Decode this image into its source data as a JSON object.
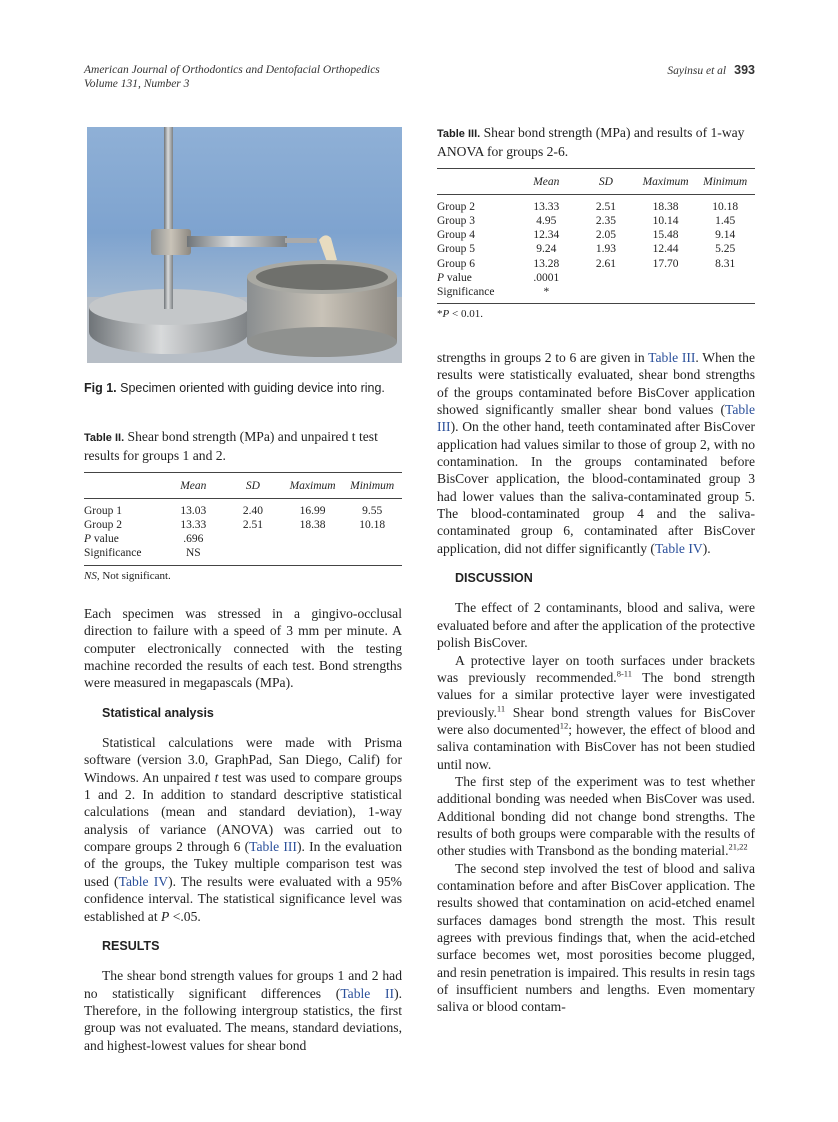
{
  "header": {
    "journal": "American Journal of Orthodontics and Dentofacial Orthopedics",
    "volume": "Volume 131, Number 3",
    "authors": "Sayinsu et al",
    "page": "393"
  },
  "figure": {
    "label": "Fig 1.",
    "caption": "Specimen oriented with guiding device into ring."
  },
  "table2": {
    "label": "Table II.",
    "caption": "Shear bond strength (MPa) and unpaired t test results for groups 1 and 2.",
    "columns": [
      "",
      "Mean",
      "SD",
      "Maximum",
      "Minimum"
    ],
    "rows": [
      [
        "Group 1",
        "13.03",
        "2.40",
        "16.99",
        "9.55"
      ],
      [
        "Group 2",
        "13.33",
        "2.51",
        "18.38",
        "10.18"
      ],
      [
        "P value",
        ".696",
        "",
        "",
        ""
      ],
      [
        "Significance",
        "NS",
        "",
        "",
        ""
      ]
    ],
    "note": "NS, Not significant."
  },
  "table3": {
    "label": "Table III.",
    "caption": "Shear bond strength (MPa) and results of 1-way ANOVA for groups 2-6.",
    "columns": [
      "",
      "Mean",
      "SD",
      "Maximum",
      "Minimum"
    ],
    "rows": [
      [
        "Group 2",
        "13.33",
        "2.51",
        "18.38",
        "10.18"
      ],
      [
        "Group 3",
        "4.95",
        "2.35",
        "10.14",
        "1.45"
      ],
      [
        "Group 4",
        "12.34",
        "2.05",
        "15.48",
        "9.14"
      ],
      [
        "Group 5",
        "9.24",
        "1.93",
        "12.44",
        "5.25"
      ],
      [
        "Group 6",
        "13.28",
        "2.61",
        "17.70",
        "8.31"
      ],
      [
        "P value",
        ".0001",
        "",
        "",
        ""
      ],
      [
        "Significance",
        "*",
        "",
        "",
        ""
      ]
    ],
    "note": "*P < 0.01."
  },
  "left_body": [
    {
      "type": "p",
      "cls": "noind",
      "segs": [
        {
          "t": "Each specimen was stressed in a gingivo-occlusal direction to failure with a speed of 3 mm per minute. A computer electronically connected with the testing machine recorded the results of each test. Bond strengths were measured in megapascals (MPa)."
        }
      ]
    },
    {
      "type": "h",
      "text": "Statistical analysis"
    },
    {
      "type": "p",
      "segs": [
        {
          "t": "Statistical calculations were made with Prisma software (version 3.0, GraphPad, San Diego, Calif) for Windows. An unpaired "
        },
        {
          "t": "t",
          "i": true
        },
        {
          "t": " test was used to compare groups 1 and 2. In addition to standard descriptive statistical calculations (mean and standard deviation), 1-way analysis of variance (ANOVA) was carried out to compare groups 2 through 6 ("
        },
        {
          "t": "Table III",
          "link": true
        },
        {
          "t": "). In the evaluation of the groups, the Tukey multiple comparison test was used ("
        },
        {
          "t": "Table IV",
          "link": true
        },
        {
          "t": "). The results were evaluated with a 95% confidence interval. The statistical significance level was established at "
        },
        {
          "t": "P",
          "i": true
        },
        {
          "t": " <.05."
        }
      ]
    },
    {
      "type": "h",
      "text": "RESULTS"
    },
    {
      "type": "p",
      "segs": [
        {
          "t": "The shear bond strength values for groups 1 and 2 had no statistically significant differences ("
        },
        {
          "t": "Table II",
          "link": true
        },
        {
          "t": "). Therefore, in the following intergroup statistics, the first group was not evaluated. The means, standard deviations, and highest-lowest values for shear bond"
        }
      ]
    }
  ],
  "right_body": [
    {
      "type": "p",
      "cls": "noind",
      "segs": [
        {
          "t": "strengths in groups 2 to 6 are given in "
        },
        {
          "t": "Table III",
          "link": true
        },
        {
          "t": ". When the results were statistically evaluated, shear bond strengths of the groups contaminated before BisCover application showed significantly smaller shear bond values ("
        },
        {
          "t": "Table III",
          "link": true
        },
        {
          "t": "). On the other hand, teeth contaminated after BisCover application had values similar to those of group 2, with no contamination. In the groups contaminated before BisCover application, the blood-contaminated group 3 had lower values than the saliva-contaminated group 5. The blood-contaminated group 4 and the saliva-contaminated group 6, contaminated after BisCover application, did not differ significantly ("
        },
        {
          "t": "Table IV",
          "link": true
        },
        {
          "t": ")."
        }
      ]
    },
    {
      "type": "h",
      "text": "DISCUSSION"
    },
    {
      "type": "p",
      "segs": [
        {
          "t": "The effect of 2 contaminants, blood and saliva, were evaluated before and after the application of the protective polish BisCover."
        }
      ]
    },
    {
      "type": "p",
      "segs": [
        {
          "t": "A protective layer on tooth surfaces under brackets was previously recommended."
        },
        {
          "t": "8-11",
          "sup": true
        },
        {
          "t": " The bond strength values for a similar protective layer were investigated previously."
        },
        {
          "t": "11",
          "sup": true
        },
        {
          "t": " Shear bond strength values for BisCover were also documented"
        },
        {
          "t": "12",
          "sup": true
        },
        {
          "t": "; however, the effect of blood and saliva contamination with BisCover has not been studied until now."
        }
      ]
    },
    {
      "type": "p",
      "segs": [
        {
          "t": "The first step of the experiment was to test whether additional bonding was needed when BisCover was used. Additional bonding did not change bond strengths. The results of both groups were comparable with the results of other studies with Transbond as the bonding material."
        },
        {
          "t": "21,22",
          "sup": true
        }
      ]
    },
    {
      "type": "p",
      "segs": [
        {
          "t": "The second step involved the test of blood and saliva contamination before and after BisCover application. The results showed that contamination on acid-etched enamel surfaces damages bond strength the most. This result agrees with previous findings that, when the acid-etched surface becomes wet, most porosities become plugged, and resin penetration is impaired. This results in resin tags of insufficient numbers and lengths. Even momentary saliva or blood contam-"
        }
      ]
    }
  ]
}
